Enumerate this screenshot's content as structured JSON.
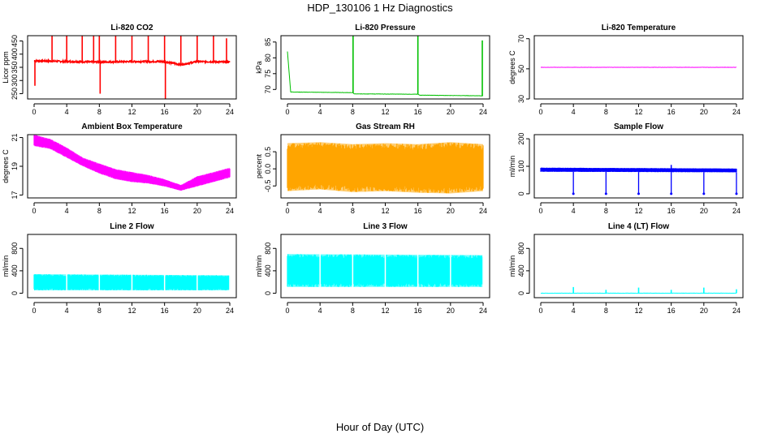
{
  "figure": {
    "title": "HDP_130106  1 Hz Diagnostics",
    "xlabel": "Hour of Day (UTC)"
  },
  "chart_data": [
    {
      "type": "line",
      "title": "Li-820 CO2",
      "ylabel": "Licor ppm",
      "color": "#ff0000",
      "xlim": [
        0,
        24
      ],
      "ylim": [
        230,
        470
      ],
      "x_ticks": [
        0,
        4,
        8,
        12,
        16,
        20,
        24
      ],
      "y_ticks": [
        250,
        300,
        350,
        400,
        450
      ],
      "baseline": [
        [
          0,
          375
        ],
        [
          4,
          372
        ],
        [
          8,
          370
        ],
        [
          12,
          372
        ],
        [
          16,
          372
        ],
        [
          18,
          360
        ],
        [
          20,
          372
        ],
        [
          24,
          370
        ]
      ],
      "spikes": [
        {
          "x": 2.2,
          "y": 470
        },
        {
          "x": 4.0,
          "y": 470
        },
        {
          "x": 5.9,
          "y": 470
        },
        {
          "x": 7.3,
          "y": 470
        },
        {
          "x": 8.0,
          "y": 470
        },
        {
          "x": 10.0,
          "y": 470
        },
        {
          "x": 12.0,
          "y": 470
        },
        {
          "x": 14.0,
          "y": 470
        },
        {
          "x": 16.0,
          "y": 470
        },
        {
          "x": 18.0,
          "y": 470
        },
        {
          "x": 20.0,
          "y": 470
        },
        {
          "x": 22.0,
          "y": 470
        },
        {
          "x": 23.6,
          "y": 460
        },
        {
          "x": 0.1,
          "y": 280
        },
        {
          "x": 8.1,
          "y": 250
        },
        {
          "x": 16.1,
          "y": 230
        }
      ]
    },
    {
      "type": "line",
      "title": "Li-820 Pressure",
      "ylabel": "kPa",
      "color": "#00c000",
      "xlim": [
        0,
        24
      ],
      "ylim": [
        67,
        87
      ],
      "x_ticks": [
        0,
        4,
        8,
        12,
        16,
        20,
        24
      ],
      "y_ticks": [
        70,
        75,
        80,
        85
      ],
      "baseline": [
        [
          0,
          82
        ],
        [
          0.4,
          69.2
        ],
        [
          8,
          69
        ],
        [
          8.2,
          68.6
        ],
        [
          16,
          68.5
        ],
        [
          16.2,
          68.2
        ],
        [
          24,
          68
        ]
      ],
      "spikes": [
        {
          "x": 8.05,
          "y": 87
        },
        {
          "x": 16.0,
          "y": 87
        },
        {
          "x": 23.9,
          "y": 85.5
        }
      ]
    },
    {
      "type": "line",
      "title": "Li-820 Temperature",
      "ylabel": "degrees C",
      "color": "#ff00ff",
      "xlim": [
        0,
        24
      ],
      "ylim": [
        30,
        72
      ],
      "x_ticks": [
        0,
        4,
        8,
        12,
        16,
        20,
        24
      ],
      "y_ticks": [
        30,
        50,
        70
      ],
      "baseline": [
        [
          0,
          51
        ],
        [
          24,
          51
        ]
      ]
    },
    {
      "type": "area",
      "title": "Ambient Box Temperature",
      "ylabel": "degrees C",
      "color": "#ff00ff",
      "xlim": [
        0,
        24
      ],
      "ylim": [
        16.8,
        21.2
      ],
      "x_ticks": [
        0,
        4,
        8,
        12,
        16,
        20,
        24
      ],
      "y_ticks": [
        17,
        19,
        21
      ],
      "upper": [
        [
          0,
          21.2
        ],
        [
          2,
          20.9
        ],
        [
          4,
          20.3
        ],
        [
          6,
          19.6
        ],
        [
          8,
          19.2
        ],
        [
          10,
          18.8
        ],
        [
          12,
          18.6
        ],
        [
          14,
          18.4
        ],
        [
          16,
          18.1
        ],
        [
          18,
          17.7
        ],
        [
          20,
          18.3
        ],
        [
          22,
          18.6
        ],
        [
          24,
          18.9
        ]
      ],
      "lower": [
        [
          0,
          20.4
        ],
        [
          2,
          20.2
        ],
        [
          4,
          19.6
        ],
        [
          6,
          19.0
        ],
        [
          8,
          18.5
        ],
        [
          10,
          18.1
        ],
        [
          12,
          17.9
        ],
        [
          14,
          17.8
        ],
        [
          16,
          17.6
        ],
        [
          18,
          17.3
        ],
        [
          20,
          17.6
        ],
        [
          22,
          17.9
        ],
        [
          24,
          18.2
        ]
      ]
    },
    {
      "type": "area",
      "title": "Gas Stream RH",
      "ylabel": "percent",
      "color": "#ffa500",
      "xlim": [
        0,
        24
      ],
      "ylim": [
        -0.85,
        1.0
      ],
      "x_ticks": [
        0,
        4,
        8,
        12,
        16,
        20,
        24
      ],
      "y_ticks": [
        -0.5,
        0.0,
        0.5
      ],
      "upper": [
        [
          0,
          0.75
        ],
        [
          4,
          0.78
        ],
        [
          8,
          0.72
        ],
        [
          12,
          0.75
        ],
        [
          16,
          0.72
        ],
        [
          20,
          0.78
        ],
        [
          24,
          0.72
        ]
      ],
      "lower": [
        [
          0,
          -0.65
        ],
        [
          4,
          -0.6
        ],
        [
          8,
          -0.68
        ],
        [
          12,
          -0.65
        ],
        [
          16,
          -0.7
        ],
        [
          20,
          -0.72
        ],
        [
          24,
          -0.65
        ]
      ]
    },
    {
      "type": "area",
      "title": "Sample Flow",
      "ylabel": "ml/min",
      "color": "#0000ff",
      "xlim": [
        0,
        24
      ],
      "ylim": [
        -15,
        215
      ],
      "x_ticks": [
        0,
        4,
        8,
        12,
        16,
        20,
        24
      ],
      "y_ticks": [
        0,
        100,
        200
      ],
      "upper": [
        [
          0,
          95
        ],
        [
          24,
          92
        ]
      ],
      "lower": [
        [
          0,
          80
        ],
        [
          24,
          78
        ]
      ],
      "dips": [
        4.0,
        8.0,
        12.0,
        16.0,
        20.0,
        24.0
      ],
      "peak": {
        "x": 16.0,
        "y": 105
      }
    },
    {
      "type": "area",
      "title": "Line 2 Flow",
      "ylabel": "ml/min",
      "color": "#00ffff",
      "xlim": [
        0,
        24
      ],
      "ylim": [
        -80,
        1050
      ],
      "x_ticks": [
        0,
        4,
        8,
        12,
        16,
        20,
        24
      ],
      "y_ticks": [
        0,
        400,
        800
      ],
      "upper": [
        [
          0,
          340
        ],
        [
          24,
          320
        ]
      ],
      "lower": [
        [
          0,
          50
        ],
        [
          24,
          50
        ]
      ],
      "gaps": [
        4.0,
        8.0,
        12.0,
        16.0,
        20.0,
        24.0
      ]
    },
    {
      "type": "area",
      "title": "Line 3 Flow",
      "ylabel": "ml/min",
      "color": "#00ffff",
      "xlim": [
        0,
        24
      ],
      "ylim": [
        -80,
        1050
      ],
      "x_ticks": [
        0,
        4,
        8,
        12,
        16,
        20,
        24
      ],
      "y_ticks": [
        0,
        400,
        800
      ],
      "upper": [
        [
          0,
          700
        ],
        [
          24,
          680
        ]
      ],
      "lower": [
        [
          0,
          110
        ],
        [
          24,
          110
        ]
      ],
      "gaps": [
        4.0,
        8.0,
        12.0,
        16.0,
        20.0,
        24.0
      ]
    },
    {
      "type": "line",
      "title": "Line 4 (LT) Flow",
      "ylabel": "ml/min",
      "color": "#00ffff",
      "xlim": [
        0,
        24
      ],
      "ylim": [
        -80,
        1050
      ],
      "x_ticks": [
        0,
        4,
        8,
        12,
        16,
        20,
        24
      ],
      "y_ticks": [
        0,
        400,
        800
      ],
      "baseline": [
        [
          0,
          0
        ],
        [
          24,
          0
        ]
      ],
      "spikes": [
        {
          "x": 4.0,
          "y": 110
        },
        {
          "x": 8.0,
          "y": 60
        },
        {
          "x": 12.0,
          "y": 100
        },
        {
          "x": 16.0,
          "y": 60
        },
        {
          "x": 20.0,
          "y": 100
        },
        {
          "x": 24.0,
          "y": 70
        }
      ]
    }
  ]
}
